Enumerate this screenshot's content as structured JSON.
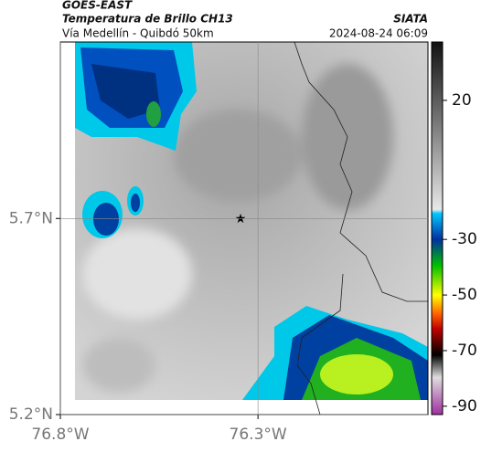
{
  "header": {
    "satellite": "GOES-EAST",
    "product": "Temperatura de Brillo CH13",
    "source": "SIATA",
    "route": "Vía Medellín - Quibdó 50km",
    "datetime": "2024-08-24 06:09"
  },
  "map": {
    "xlim": [
      -76.8,
      -75.87
    ],
    "ylim": [
      5.2,
      6.15
    ],
    "xticks": [
      {
        "value": -76.8,
        "label": "76.8°W"
      },
      {
        "value": -76.3,
        "label": "76.3°W"
      }
    ],
    "yticks": [
      {
        "value": 5.7,
        "label": "5.7°N"
      },
      {
        "value": 5.2,
        "label": "5.2°N"
      }
    ],
    "colorbar": {
      "lim": [
        -93,
        41
      ],
      "ticks": [
        20,
        -30,
        -50,
        -70,
        -90
      ]
    }
  }
}
